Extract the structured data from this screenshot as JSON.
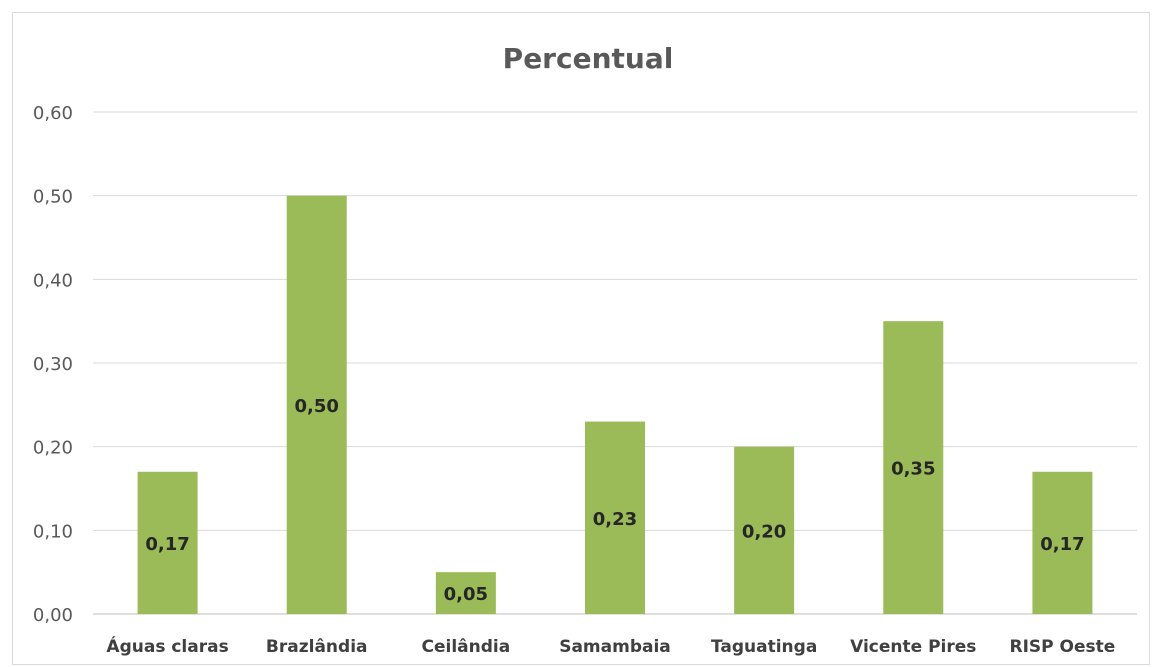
{
  "chart_data": {
    "type": "bar",
    "title": "Percentual",
    "xlabel": "",
    "ylabel": "",
    "categories": [
      "Águas claras",
      "Brazlândia",
      "Ceilândia",
      "Samambaia",
      "Taguatinga",
      "Vicente Pires",
      "RISP Oeste"
    ],
    "values": [
      0.17,
      0.5,
      0.05,
      0.23,
      0.2,
      0.35,
      0.17
    ],
    "value_labels": [
      "0,17",
      "0,50",
      "0,05",
      "0,23",
      "0,20",
      "0,35",
      "0,17"
    ],
    "ylim": [
      0,
      0.6
    ],
    "y_ticks": [
      0,
      0.1,
      0.2,
      0.3,
      0.4,
      0.5,
      0.6
    ],
    "y_tick_labels": [
      "0,00",
      "0,10",
      "0,20",
      "0,30",
      "0,40",
      "0,50",
      "0,60"
    ],
    "grid": true,
    "legend": "none",
    "bar_color": "#9bbb59"
  }
}
